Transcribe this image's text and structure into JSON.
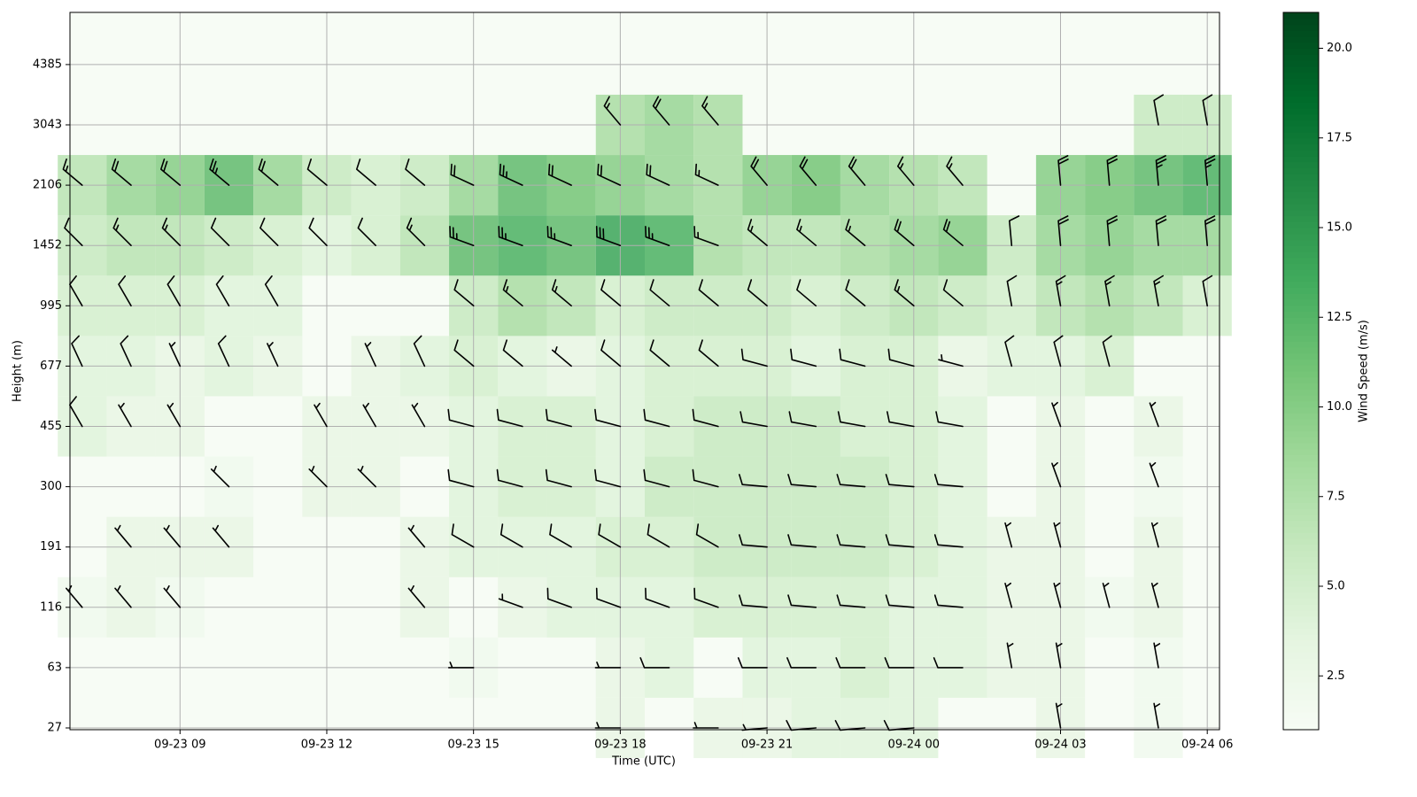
{
  "chart_data": {
    "type": "barbs",
    "xlabel": "Time (UTC)",
    "ylabel": "Height (m)",
    "colorbar_label": "Wind Speed (m/s)",
    "xlim": [
      "09-23 06:45",
      "09-24 06:15"
    ],
    "xticks": [
      "09-23 09",
      "09-23 12",
      "09-23 15",
      "09-23 18",
      "09-23 21",
      "09-24 00",
      "09-24 03",
      "09-24 06"
    ],
    "yticks": [
      27,
      63,
      116,
      191,
      300,
      455,
      677,
      995,
      1452,
      2106,
      3043,
      4385
    ],
    "x": [
      "09-23 07",
      "09-23 08",
      "09-23 09",
      "09-23 10",
      "09-23 11",
      "09-23 12",
      "09-23 13",
      "09-23 14",
      "09-23 15",
      "09-23 16",
      "09-23 17",
      "09-23 18",
      "09-23 19",
      "09-23 20",
      "09-23 21",
      "09-23 22",
      "09-23 23",
      "09-24 00",
      "09-24 01",
      "09-24 02",
      "09-24 03",
      "09-24 04",
      "09-24 05",
      "09-24 06"
    ],
    "speed": [
      [
        null,
        null,
        null,
        null,
        null,
        null,
        null,
        null,
        null,
        null,
        null,
        3,
        null,
        3,
        3,
        4,
        4,
        4,
        null,
        null,
        3,
        null,
        2,
        null
      ],
      [
        null,
        null,
        null,
        null,
        null,
        null,
        null,
        null,
        2,
        null,
        null,
        3,
        4,
        null,
        4,
        4,
        5,
        4,
        4,
        3,
        3,
        null,
        2,
        null
      ],
      [
        2,
        3,
        2,
        null,
        null,
        null,
        null,
        3,
        null,
        3,
        4,
        4,
        4,
        5,
        5,
        5,
        5,
        4,
        4,
        3,
        3,
        2,
        3,
        null
      ],
      [
        null,
        3,
        3,
        3,
        null,
        null,
        null,
        3,
        4,
        4,
        4,
        5,
        5,
        6,
        6,
        6,
        6,
        5,
        4,
        3,
        3,
        null,
        3,
        null
      ],
      [
        null,
        null,
        null,
        2,
        null,
        3,
        3,
        null,
        4,
        5,
        5,
        4,
        6,
        6,
        6,
        6,
        6,
        5,
        4,
        null,
        3,
        null,
        2,
        null
      ],
      [
        4,
        3,
        3,
        null,
        null,
        3,
        3,
        3,
        4,
        5,
        5,
        4,
        5,
        6,
        6,
        6,
        5,
        5,
        4,
        null,
        3,
        null,
        3,
        null
      ],
      [
        4,
        4,
        3,
        4,
        3,
        null,
        3,
        4,
        5,
        4,
        3,
        4,
        5,
        5,
        5,
        4,
        5,
        5,
        3,
        4,
        4,
        5,
        null,
        null
      ],
      [
        5,
        5,
        5,
        4,
        4,
        null,
        null,
        null,
        6,
        8,
        7,
        5,
        6,
        6,
        6,
        5,
        6,
        7,
        6,
        5,
        7,
        8,
        7,
        5
      ],
      [
        6,
        7,
        7,
        6,
        5,
        4,
        5,
        7,
        12,
        13,
        12,
        14,
        13,
        8,
        7,
        7,
        8,
        9,
        10,
        6,
        9,
        10,
        9,
        9
      ],
      [
        7,
        9,
        10,
        12,
        9,
        6,
        5,
        6,
        9,
        12,
        11,
        10,
        9,
        8,
        10,
        11,
        9,
        8,
        7,
        null,
        10,
        11,
        12,
        13
      ],
      [
        null,
        null,
        null,
        null,
        null,
        null,
        null,
        null,
        null,
        null,
        null,
        8,
        9,
        8,
        null,
        null,
        null,
        null,
        null,
        null,
        null,
        null,
        6,
        6
      ],
      [
        null,
        null,
        null,
        null,
        null,
        null,
        null,
        null,
        null,
        null,
        null,
        null,
        null,
        null,
        null,
        null,
        null,
        null,
        null,
        null,
        null,
        null,
        null,
        null
      ]
    ],
    "direction": [
      [
        null,
        null,
        null,
        null,
        null,
        null,
        null,
        null,
        null,
        null,
        null,
        270,
        null,
        270,
        265,
        265,
        265,
        265,
        null,
        null,
        350,
        null,
        350,
        null
      ],
      [
        null,
        null,
        null,
        null,
        null,
        null,
        null,
        null,
        270,
        null,
        null,
        270,
        270,
        null,
        270,
        270,
        270,
        270,
        270,
        350,
        350,
        null,
        350,
        null
      ],
      [
        320,
        320,
        320,
        null,
        null,
        null,
        null,
        320,
        null,
        290,
        290,
        290,
        290,
        290,
        275,
        275,
        275,
        275,
        275,
        345,
        345,
        345,
        345,
        null
      ],
      [
        null,
        320,
        320,
        320,
        null,
        null,
        null,
        320,
        300,
        300,
        300,
        300,
        300,
        300,
        275,
        275,
        275,
        275,
        275,
        345,
        345,
        null,
        345,
        null
      ],
      [
        null,
        null,
        null,
        315,
        null,
        315,
        315,
        null,
        285,
        285,
        285,
        285,
        285,
        285,
        275,
        275,
        275,
        275,
        275,
        null,
        340,
        null,
        340,
        null
      ],
      [
        330,
        330,
        330,
        null,
        null,
        330,
        330,
        330,
        285,
        285,
        285,
        285,
        285,
        285,
        280,
        280,
        280,
        280,
        280,
        null,
        340,
        null,
        340,
        null
      ],
      [
        335,
        335,
        335,
        335,
        335,
        null,
        335,
        335,
        310,
        310,
        310,
        310,
        310,
        310,
        285,
        285,
        285,
        285,
        285,
        345,
        345,
        345,
        null,
        null
      ],
      [
        330,
        330,
        330,
        330,
        330,
        null,
        null,
        null,
        310,
        310,
        310,
        310,
        310,
        310,
        310,
        310,
        310,
        310,
        310,
        350,
        350,
        350,
        350,
        350
      ],
      [
        315,
        315,
        315,
        315,
        315,
        315,
        315,
        315,
        290,
        290,
        290,
        290,
        290,
        290,
        310,
        310,
        310,
        310,
        310,
        355,
        355,
        355,
        355,
        355
      ],
      [
        310,
        310,
        310,
        310,
        310,
        310,
        310,
        310,
        295,
        295,
        295,
        295,
        295,
        295,
        320,
        320,
        320,
        320,
        320,
        null,
        355,
        355,
        355,
        355
      ],
      [
        null,
        null,
        null,
        null,
        null,
        null,
        null,
        null,
        null,
        null,
        null,
        320,
        320,
        320,
        null,
        null,
        null,
        null,
        null,
        null,
        null,
        null,
        350,
        350
      ],
      [
        null,
        null,
        null,
        null,
        null,
        null,
        null,
        null,
        null,
        null,
        null,
        null,
        null,
        null,
        null,
        null,
        null,
        null,
        null,
        null,
        null,
        null,
        null,
        null
      ]
    ],
    "clim": [
      1,
      21
    ],
    "cticks": [
      2.5,
      {
        "value": 5,
        "label": "5.0"
      },
      7.5,
      {
        "value": 10,
        "label": "10.0"
      },
      12.5,
      {
        "value": 15,
        "label": "15.0"
      },
      17.5,
      {
        "value": 20,
        "label": "20.0"
      }
    ],
    "colormap": [
      "#f7fcf5",
      "#e5f5e0",
      "#c7e9c0",
      "#a1d99b",
      "#74c476",
      "#41ab5d",
      "#238b45",
      "#006d2c",
      "#00441b"
    ],
    "barb_color": "#000000",
    "grid": true
  }
}
